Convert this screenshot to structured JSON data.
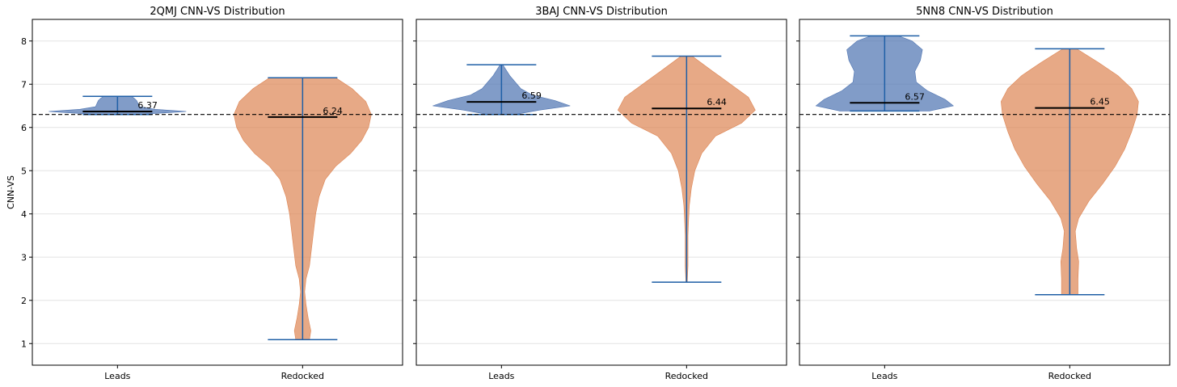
{
  "chart_data": [
    {
      "type": "violin",
      "title": "2QMJ CNN-VS Distribution",
      "ylabel": "CNN-VS",
      "ylim": [
        0.5,
        8.5
      ],
      "yticks": [
        "1",
        "2",
        "3",
        "4",
        "5",
        "6",
        "7",
        "8"
      ],
      "categories": [
        "Leads",
        "Redocked"
      ],
      "reference_line": 6.3,
      "grid": "horizontal",
      "violins": [
        {
          "name": "Leads",
          "color": "#4c72b0",
          "min": 6.3,
          "max": 6.72,
          "mean": 6.37,
          "mean_label": "6.37",
          "density": [
            [
              6.3,
              0.3
            ],
            [
              6.34,
              0.72
            ],
            [
              6.37,
              1.0
            ],
            [
              6.42,
              0.55
            ],
            [
              6.48,
              0.32
            ],
            [
              6.55,
              0.3
            ],
            [
              6.62,
              0.28
            ],
            [
              6.68,
              0.24
            ],
            [
              6.72,
              0.2
            ]
          ]
        },
        {
          "name": "Redocked",
          "color": "#dd8452",
          "min": 1.09,
          "max": 7.15,
          "mean": 6.24,
          "mean_label": "6.24",
          "density": [
            [
              1.09,
              0.1
            ],
            [
              1.3,
              0.12
            ],
            [
              1.6,
              0.08
            ],
            [
              1.9,
              0.05
            ],
            [
              2.2,
              0.03
            ],
            [
              2.5,
              0.05
            ],
            [
              2.8,
              0.1
            ],
            [
              3.2,
              0.13
            ],
            [
              3.6,
              0.16
            ],
            [
              4.0,
              0.19
            ],
            [
              4.4,
              0.24
            ],
            [
              4.8,
              0.33
            ],
            [
              5.1,
              0.48
            ],
            [
              5.4,
              0.7
            ],
            [
              5.7,
              0.86
            ],
            [
              6.0,
              0.96
            ],
            [
              6.3,
              1.0
            ],
            [
              6.6,
              0.92
            ],
            [
              6.9,
              0.72
            ],
            [
              7.15,
              0.48
            ]
          ]
        }
      ]
    },
    {
      "type": "violin",
      "title": "3BAJ CNN-VS Distribution",
      "ylim": [
        0.5,
        8.5
      ],
      "yticks": [
        "1",
        "2",
        "3",
        "4",
        "5",
        "6",
        "7",
        "8"
      ],
      "categories": [
        "Leads",
        "Redocked"
      ],
      "reference_line": 6.3,
      "grid": "horizontal",
      "violins": [
        {
          "name": "Leads",
          "color": "#4c72b0",
          "min": 6.3,
          "max": 7.45,
          "mean": 6.59,
          "mean_label": "6.59",
          "density": [
            [
              6.3,
              0.2
            ],
            [
              6.4,
              0.55
            ],
            [
              6.5,
              1.0
            ],
            [
              6.62,
              0.78
            ],
            [
              6.75,
              0.45
            ],
            [
              6.9,
              0.28
            ],
            [
              7.05,
              0.2
            ],
            [
              7.2,
              0.12
            ],
            [
              7.35,
              0.06
            ],
            [
              7.45,
              0.02
            ]
          ]
        },
        {
          "name": "Redocked",
          "color": "#dd8452",
          "min": 2.42,
          "max": 7.65,
          "mean": 6.44,
          "mean_label": "6.44",
          "density": [
            [
              2.42,
              0.01
            ],
            [
              2.8,
              0.02
            ],
            [
              3.2,
              0.02
            ],
            [
              3.5,
              0.02
            ],
            [
              3.9,
              0.03
            ],
            [
              4.2,
              0.04
            ],
            [
              4.6,
              0.07
            ],
            [
              5.0,
              0.12
            ],
            [
              5.4,
              0.22
            ],
            [
              5.8,
              0.42
            ],
            [
              6.1,
              0.8
            ],
            [
              6.4,
              1.0
            ],
            [
              6.7,
              0.9
            ],
            [
              7.0,
              0.64
            ],
            [
              7.3,
              0.38
            ],
            [
              7.65,
              0.08
            ]
          ]
        }
      ]
    },
    {
      "type": "violin",
      "title": "5NN8 CNN-VS Distribution",
      "ylim": [
        0.5,
        8.5
      ],
      "yticks": [
        "1",
        "2",
        "3",
        "4",
        "5",
        "6",
        "7",
        "8"
      ],
      "categories": [
        "Leads",
        "Redocked"
      ],
      "reference_line": 6.3,
      "grid": "horizontal",
      "violins": [
        {
          "name": "Leads",
          "color": "#4c72b0",
          "min": 6.38,
          "max": 8.12,
          "mean": 6.57,
          "mean_label": "6.57",
          "density": [
            [
              6.38,
              0.65
            ],
            [
              6.5,
              1.0
            ],
            [
              6.65,
              0.88
            ],
            [
              6.85,
              0.62
            ],
            [
              7.05,
              0.46
            ],
            [
              7.3,
              0.44
            ],
            [
              7.55,
              0.52
            ],
            [
              7.8,
              0.55
            ],
            [
              8.0,
              0.4
            ],
            [
              8.12,
              0.2
            ]
          ]
        },
        {
          "name": "Redocked",
          "color": "#dd8452",
          "min": 2.13,
          "max": 7.82,
          "mean": 6.45,
          "mean_label": "6.45",
          "density": [
            [
              2.13,
              0.12
            ],
            [
              2.5,
              0.12
            ],
            [
              2.9,
              0.13
            ],
            [
              3.2,
              0.1
            ],
            [
              3.6,
              0.08
            ],
            [
              3.9,
              0.13
            ],
            [
              4.3,
              0.28
            ],
            [
              4.7,
              0.48
            ],
            [
              5.1,
              0.66
            ],
            [
              5.5,
              0.8
            ],
            [
              5.9,
              0.9
            ],
            [
              6.3,
              0.98
            ],
            [
              6.6,
              1.0
            ],
            [
              6.9,
              0.9
            ],
            [
              7.2,
              0.7
            ],
            [
              7.5,
              0.42
            ],
            [
              7.82,
              0.1
            ]
          ]
        }
      ]
    }
  ]
}
